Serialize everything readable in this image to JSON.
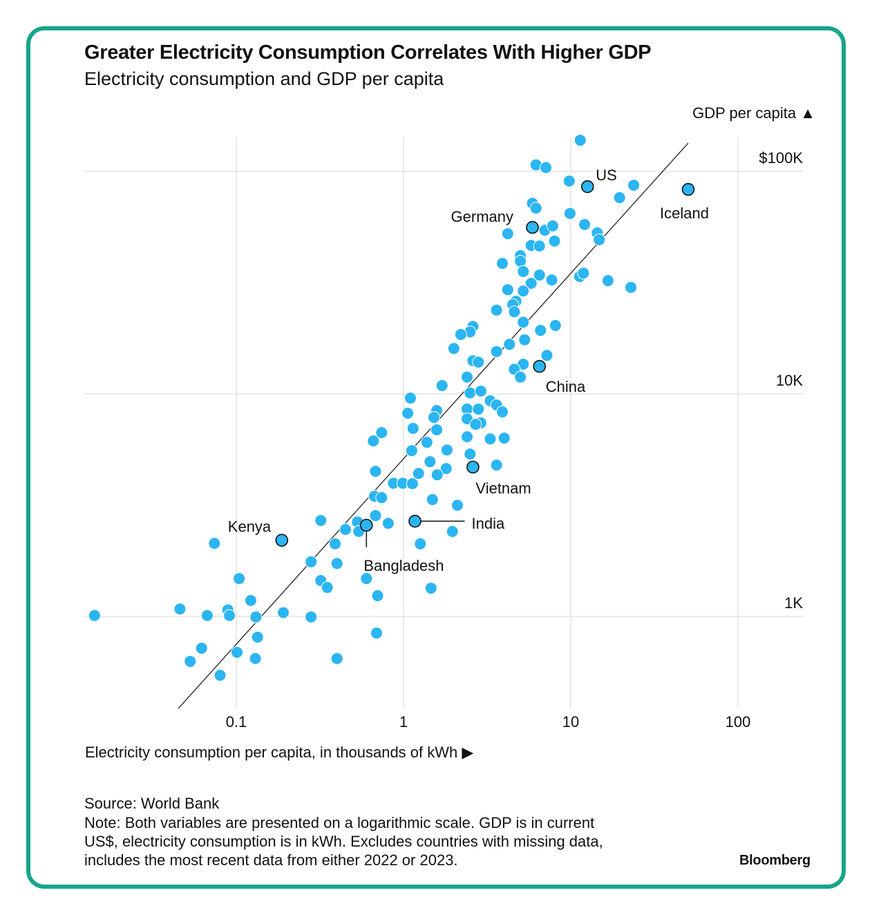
{
  "chart_data": {
    "type": "scatter",
    "title": "Greater Electricity Consumption Correlates With Higher GDP",
    "subtitle": "Electricity consumption and GDP per capita",
    "xlabel": "Electricity consumption per capita, in thousands of kWh ▶",
    "ylabel": "GDP per capita ▲",
    "x_scale": "log",
    "y_scale": "log",
    "xlim": [
      0.0125,
      130
    ],
    "ylim": [
      390,
      140000
    ],
    "x_ticks": [
      {
        "value": 0.1,
        "label": "0.1"
      },
      {
        "value": 1,
        "label": "1"
      },
      {
        "value": 10,
        "label": "10"
      },
      {
        "value": 100,
        "label": "100"
      }
    ],
    "y_ticks": [
      {
        "value": 100000,
        "label": "$100K"
      },
      {
        "value": 10000,
        "label": "10K"
      },
      {
        "value": 1000,
        "label": "1K"
      }
    ],
    "grid": true,
    "dot_color": "#2bb5f2",
    "trend_line": [
      [
        0.045,
        386
      ],
      [
        50.4,
        134000
      ]
    ],
    "highlighted": [
      {
        "name": "US",
        "x": 12.6,
        "y": 85400
      },
      {
        "name": "Iceland",
        "x": 50.4,
        "y": 83000
      },
      {
        "name": "Germany",
        "x": 5.9,
        "y": 56000
      },
      {
        "name": "China",
        "x": 6.5,
        "y": 13300
      },
      {
        "name": "Vietnam",
        "x": 2.6,
        "y": 4690
      },
      {
        "name": "India",
        "x": 1.17,
        "y": 2680
      },
      {
        "name": "Bangladesh",
        "x": 0.6,
        "y": 2570
      },
      {
        "name": "Kenya",
        "x": 0.187,
        "y": 2200
      }
    ],
    "points": [
      [
        11.4,
        138000
      ],
      [
        6.2,
        107000
      ],
      [
        7.1,
        104000
      ],
      [
        9.8,
        90500
      ],
      [
        23.8,
        86700
      ],
      [
        19.6,
        76200
      ],
      [
        5.9,
        71900
      ],
      [
        6.2,
        68400
      ],
      [
        9.9,
        64700
      ],
      [
        12.1,
        57700
      ],
      [
        4.2,
        52500
      ],
      [
        7.0,
        54400
      ],
      [
        7.8,
        56900
      ],
      [
        14.4,
        52900
      ],
      [
        14.8,
        49300
      ],
      [
        8.0,
        48600
      ],
      [
        5.8,
        46500
      ],
      [
        6.5,
        46200
      ],
      [
        5.0,
        41800
      ],
      [
        5.0,
        39500
      ],
      [
        3.9,
        38600
      ],
      [
        5.2,
        35500
      ],
      [
        6.5,
        34200
      ],
      [
        7.7,
        32500
      ],
      [
        5.8,
        31400
      ],
      [
        11.3,
        33700
      ],
      [
        11.9,
        34900
      ],
      [
        16.7,
        32300
      ],
      [
        22.9,
        30100
      ],
      [
        5.2,
        29000
      ],
      [
        4.2,
        29400
      ],
      [
        4.7,
        26100
      ],
      [
        4.5,
        25200
      ],
      [
        3.6,
        23800
      ],
      [
        4.6,
        23400
      ],
      [
        5.2,
        21000
      ],
      [
        8.1,
        20300
      ],
      [
        6.6,
        19300
      ],
      [
        2.6,
        20100
      ],
      [
        2.5,
        19000
      ],
      [
        2.2,
        18500
      ],
      [
        5.3,
        17500
      ],
      [
        4.3,
        16700
      ],
      [
        2.0,
        16000
      ],
      [
        3.6,
        15500
      ],
      [
        7.2,
        14900
      ],
      [
        2.6,
        14100
      ],
      [
        2.8,
        13900
      ],
      [
        5.2,
        13600
      ],
      [
        4.6,
        12900
      ],
      [
        5.0,
        11900
      ],
      [
        2.4,
        11900
      ],
      [
        1.7,
        10900
      ],
      [
        2.5,
        10100
      ],
      [
        2.9,
        10300
      ],
      [
        1.1,
        9580
      ],
      [
        3.3,
        9310
      ],
      [
        3.6,
        8920
      ],
      [
        2.4,
        8550
      ],
      [
        2.8,
        8550
      ],
      [
        1.58,
        8420
      ],
      [
        3.9,
        8300
      ],
      [
        1.06,
        8190
      ],
      [
        1.52,
        7840
      ],
      [
        2.4,
        7730
      ],
      [
        2.9,
        7410
      ],
      [
        2.7,
        7300
      ],
      [
        1.14,
        7000
      ],
      [
        1.58,
        6900
      ],
      [
        0.74,
        6700
      ],
      [
        2.4,
        6420
      ],
      [
        3.3,
        6280
      ],
      [
        4.0,
        6330
      ],
      [
        0.66,
        6150
      ],
      [
        1.38,
        6060
      ],
      [
        1.12,
        5560
      ],
      [
        1.82,
        5600
      ],
      [
        2.5,
        5370
      ],
      [
        1.44,
        4960
      ],
      [
        1.8,
        4620
      ],
      [
        3.6,
        4790
      ],
      [
        1.23,
        4390
      ],
      [
        1.59,
        4330
      ],
      [
        0.68,
        4490
      ],
      [
        0.87,
        3970
      ],
      [
        0.99,
        3970
      ],
      [
        1.13,
        3950
      ],
      [
        0.67,
        3470
      ],
      [
        0.74,
        3420
      ],
      [
        1.49,
        3350
      ],
      [
        2.1,
        3160
      ],
      [
        0.68,
        2840
      ],
      [
        0.32,
        2700
      ],
      [
        0.53,
        2660
      ],
      [
        0.81,
        2620
      ],
      [
        0.45,
        2460
      ],
      [
        0.54,
        2410
      ],
      [
        1.96,
        2410
      ],
      [
        0.074,
        2130
      ],
      [
        0.39,
        2120
      ],
      [
        1.26,
        2120
      ],
      [
        0.28,
        1760
      ],
      [
        0.4,
        1730
      ],
      [
        0.6,
        1480
      ],
      [
        0.104,
        1480
      ],
      [
        0.32,
        1450
      ],
      [
        0.35,
        1350
      ],
      [
        1.46,
        1340
      ],
      [
        0.7,
        1240
      ],
      [
        0.122,
        1180
      ],
      [
        0.046,
        1080
      ],
      [
        0.0142,
        1010
      ],
      [
        0.089,
        1070
      ],
      [
        0.091,
        1010
      ],
      [
        0.067,
        1010
      ],
      [
        0.131,
        995
      ],
      [
        0.191,
        1040
      ],
      [
        0.28,
        995
      ],
      [
        0.134,
        807
      ],
      [
        0.69,
        842
      ],
      [
        0.062,
        720
      ],
      [
        0.101,
        690
      ],
      [
        0.13,
        647
      ],
      [
        0.053,
        628
      ],
      [
        0.4,
        647
      ],
      [
        0.08,
        544
      ]
    ],
    "source": "Source: World Bank",
    "note": [
      "Note: Both variables are presented on a logarithmic scale. GDP is in current",
      "US$, electricity consumption is in kWh. Excludes countries with missing data,",
      "includes the most recent data from either 2022 or 2023."
    ],
    "brand": "Bloomberg"
  }
}
